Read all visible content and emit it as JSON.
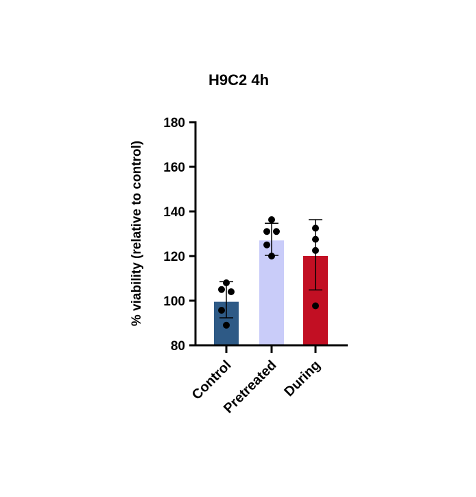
{
  "chart_data": {
    "type": "bar",
    "title": "H9C2 4h",
    "xlabel": "",
    "ylabel": "% viability (relative to control)",
    "ylim": [
      80,
      180
    ],
    "yticks": [
      "80",
      "100",
      "120",
      "140",
      "160",
      "180"
    ],
    "categories": [
      "Control",
      "Pretreated",
      "During"
    ],
    "values": [
      99.5,
      127,
      120
    ],
    "error_upper": [
      108.5,
      134.7,
      136.3
    ],
    "error_lower": [
      92.3,
      120.3,
      104.8
    ],
    "points": [
      [
        108,
        105,
        104,
        95.7,
        89
      ],
      [
        136.3,
        131,
        131,
        125,
        120
      ],
      [
        132.5,
        127.5,
        122.5,
        97.7
      ]
    ],
    "colors": [
      "#2e5a86",
      "#c9ccf9",
      "#c20f23"
    ],
    "grid": false,
    "legend": "none"
  }
}
